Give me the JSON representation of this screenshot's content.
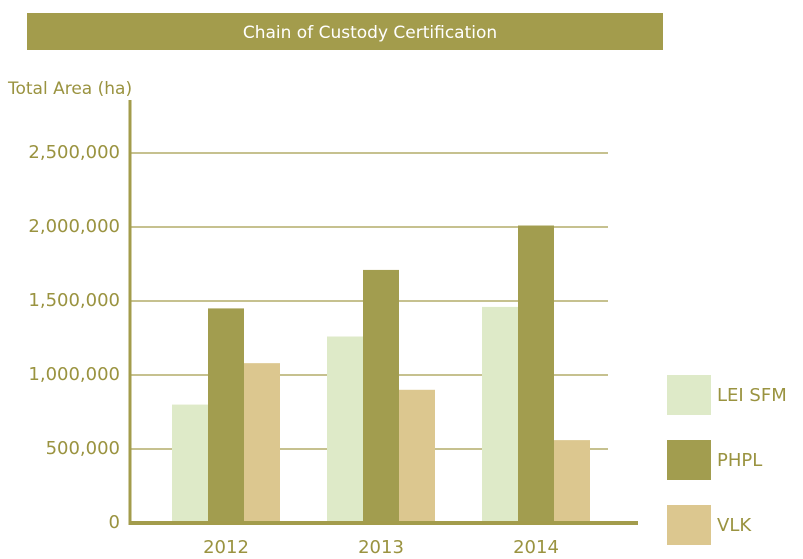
{
  "chart_data": {
    "type": "bar",
    "title": "Chain of Custody Certification",
    "y_label": "Total Area (ha)",
    "categories": [
      "2012",
      "2013",
      "2014"
    ],
    "series": [
      {
        "name": "LEI SFM",
        "color": "#deeac8",
        "values": [
          800000,
          1260000,
          1460000
        ]
      },
      {
        "name": "PHPL",
        "color": "#a29d4f",
        "values": [
          1450000,
          1710000,
          2010000
        ]
      },
      {
        "name": "VLK",
        "color": "#dcc78f",
        "values": [
          1080000,
          900000,
          560000
        ]
      }
    ],
    "ylim": [
      0,
      2500000
    ],
    "yticks": [
      0,
      {
        "value": 500000,
        "label": "500,000"
      },
      {
        "value": 1000000,
        "label": "1,000,000"
      },
      {
        "value": 1500000,
        "label": "1,500,000"
      },
      {
        "value": 2000000,
        "label": "2,000,000"
      },
      {
        "value": 2500000,
        "label": "2,500,000"
      }
    ],
    "grid": true,
    "legend": "right"
  }
}
